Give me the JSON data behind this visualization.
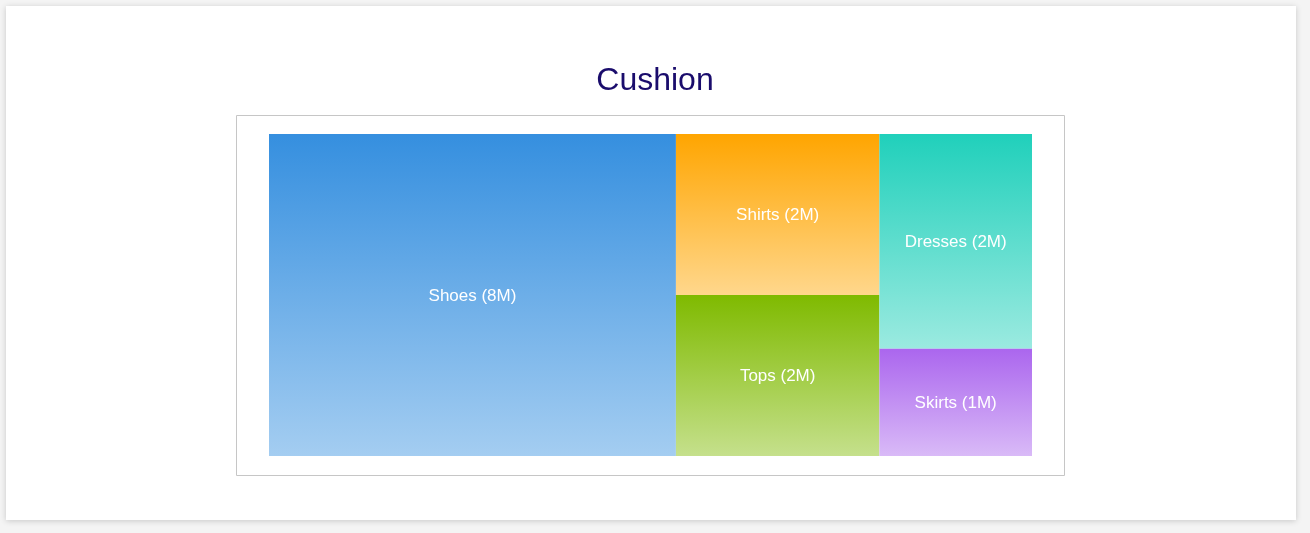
{
  "chart_data": {
    "type": "other",
    "title": "Cushion",
    "categories": [
      "Shoes",
      "Shirts",
      "Tops",
      "Dresses",
      "Skirts"
    ],
    "values": [
      8000000,
      2000000,
      2000000,
      2000000,
      1000000
    ],
    "value_labels": [
      "(8M)",
      "(2M)",
      "(2M)",
      "(2M)",
      "(1M)"
    ],
    "colors": [
      "#358fdf",
      "#ffa500",
      "#7fba00",
      "#20d0bb",
      "#ab66ee"
    ]
  }
}
